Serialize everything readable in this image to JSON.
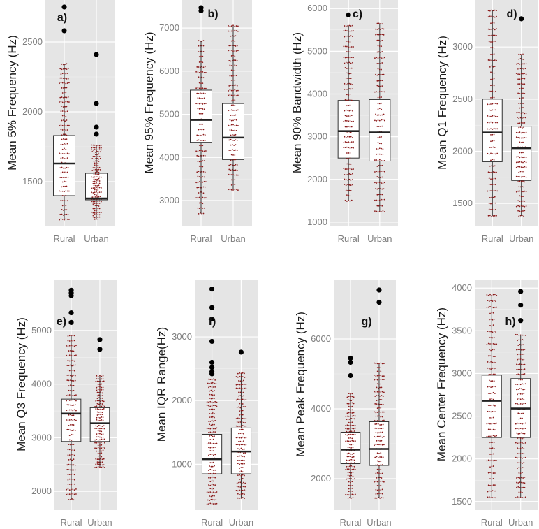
{
  "colors": {
    "panel_bg": "#e5e5e5",
    "grid": "#ffffff",
    "dots": "#8b1a1a",
    "box_fill": "#ffffff",
    "box_line": "#333333",
    "outlier": "#000000",
    "axis_text": "#7f7f7f"
  },
  "chart_data": [
    {
      "type": "box",
      "panel_label": "a)",
      "ylabel": "Mean 5% Frequency (Hz)",
      "categories": [
        "Rural",
        "Urban"
      ],
      "yticks": [
        1500,
        2000,
        2500
      ],
      "ylim": [
        1180,
        2800
      ],
      "boxes": [
        {
          "q1": 1400,
          "median": 1630,
          "q3": 1830,
          "whisker_low": 1230,
          "whisker_high": 2340,
          "outliers": [
            2580,
            2750
          ]
        },
        {
          "q1": 1370,
          "median": 1380,
          "q3": 1560,
          "whisker_low": 1230,
          "whisker_high": 1760,
          "outliers": [
            1840,
            1890,
            2060,
            2410
          ]
        }
      ]
    },
    {
      "type": "box",
      "panel_label": "b)",
      "ylabel": "Mean 95% Frequency (Hz)",
      "categories": [
        "Rural",
        "Urban"
      ],
      "yticks": [
        3000,
        4000,
        5000,
        6000,
        7000
      ],
      "ylim": [
        2400,
        7650
      ],
      "boxes": [
        {
          "q1": 4350,
          "median": 4870,
          "q3": 5560,
          "whisker_low": 2700,
          "whisker_high": 6700,
          "outliers": [
            7400,
            7470
          ]
        },
        {
          "q1": 3950,
          "median": 4460,
          "q3": 5250,
          "whisker_low": 3250,
          "whisker_high": 7050,
          "outliers": []
        }
      ]
    },
    {
      "type": "box",
      "panel_label": "c)",
      "ylabel": "Mean 90% Bandwidth (Hz)",
      "categories": [
        "Rural",
        "Urban"
      ],
      "yticks": [
        1000,
        2000,
        3000,
        4000,
        5000,
        6000
      ],
      "ylim": [
        900,
        6200
      ],
      "boxes": [
        {
          "q1": 2500,
          "median": 3130,
          "q3": 3850,
          "whisker_low": 1500,
          "whisker_high": 5600,
          "outliers": [
            5850
          ]
        },
        {
          "q1": 2430,
          "median": 3100,
          "q3": 3870,
          "whisker_low": 1250,
          "whisker_high": 5650,
          "outliers": []
        }
      ]
    },
    {
      "type": "box",
      "panel_label": "d)",
      "ylabel": "Mean Q1 Frequency (Hz)",
      "categories": [
        "Rural",
        "Urban"
      ],
      "yticks": [
        1500,
        2000,
        2500,
        3000
      ],
      "ylim": [
        1280,
        3450
      ],
      "boxes": [
        {
          "q1": 1900,
          "median": 2180,
          "q3": 2500,
          "whisker_low": 1380,
          "whisker_high": 3350,
          "outliers": []
        },
        {
          "q1": 1720,
          "median": 2030,
          "q3": 2240,
          "whisker_low": 1380,
          "whisker_high": 2930,
          "outliers": [
            3270
          ]
        }
      ]
    },
    {
      "type": "box",
      "panel_label": "e)",
      "ylabel": "Mean Q3 Frequency (Hz)",
      "categories": [
        "Rural",
        "Urban"
      ],
      "yticks": [
        2000,
        3000,
        4000,
        5000
      ],
      "ylim": [
        1650,
        5950
      ],
      "boxes": [
        {
          "q1": 2930,
          "median": 3450,
          "q3": 3720,
          "whisker_low": 1850,
          "whisker_high": 4900,
          "outliers": [
            5150,
            5330,
            5650,
            5700,
            5750
          ]
        },
        {
          "q1": 2930,
          "median": 3270,
          "q3": 3560,
          "whisker_low": 2450,
          "whisker_high": 4150,
          "outliers": [
            4650,
            4830
          ]
        }
      ]
    },
    {
      "type": "box",
      "panel_label": "f)",
      "ylabel": "Mean IQR Range(Hz)",
      "categories": [
        "Rural",
        "Urban"
      ],
      "yticks": [
        1000,
        2000,
        3000
      ],
      "ylim": [
        280,
        3900
      ],
      "boxes": [
        {
          "q1": 850,
          "median": 1080,
          "q3": 1470,
          "whisker_low": 380,
          "whisker_high": 2330,
          "outliers": [
            2420,
            2450,
            2520,
            2600,
            2930,
            3280,
            3460,
            3750
          ]
        },
        {
          "q1": 850,
          "median": 1200,
          "q3": 1570,
          "whisker_low": 470,
          "whisker_high": 2430,
          "outliers": [
            2760
          ]
        }
      ]
    },
    {
      "type": "box",
      "panel_label": "g)",
      "ylabel": "Mean Peak Frequency (Hz)",
      "categories": [
        "Rural",
        "Urban"
      ],
      "yticks": [
        2000,
        4000,
        6000
      ],
      "ylim": [
        1100,
        7700
      ],
      "boxes": [
        {
          "q1": 2430,
          "median": 2830,
          "q3": 3330,
          "whisker_low": 1450,
          "whisker_high": 4430,
          "outliers": [
            4950,
            5330,
            5450
          ]
        },
        {
          "q1": 2380,
          "median": 2850,
          "q3": 3630,
          "whisker_low": 1450,
          "whisker_high": 5300,
          "outliers": [
            7050,
            7400
          ]
        }
      ]
    },
    {
      "type": "box",
      "panel_label": "h)",
      "ylabel": "Mean Center Frequency (Hz)",
      "categories": [
        "Rural",
        "Urban"
      ],
      "yticks": [
        1500,
        2000,
        2500,
        3000,
        3500,
        4000
      ],
      "ylim": [
        1400,
        4100
      ],
      "boxes": [
        {
          "q1": 2250,
          "median": 2680,
          "q3": 2980,
          "whisker_low": 1550,
          "whisker_high": 3920,
          "outliers": []
        },
        {
          "q1": 2250,
          "median": 2590,
          "q3": 2940,
          "whisker_low": 1550,
          "whisker_high": 3450,
          "outliers": [
            3620,
            3800,
            3960
          ]
        }
      ]
    }
  ]
}
